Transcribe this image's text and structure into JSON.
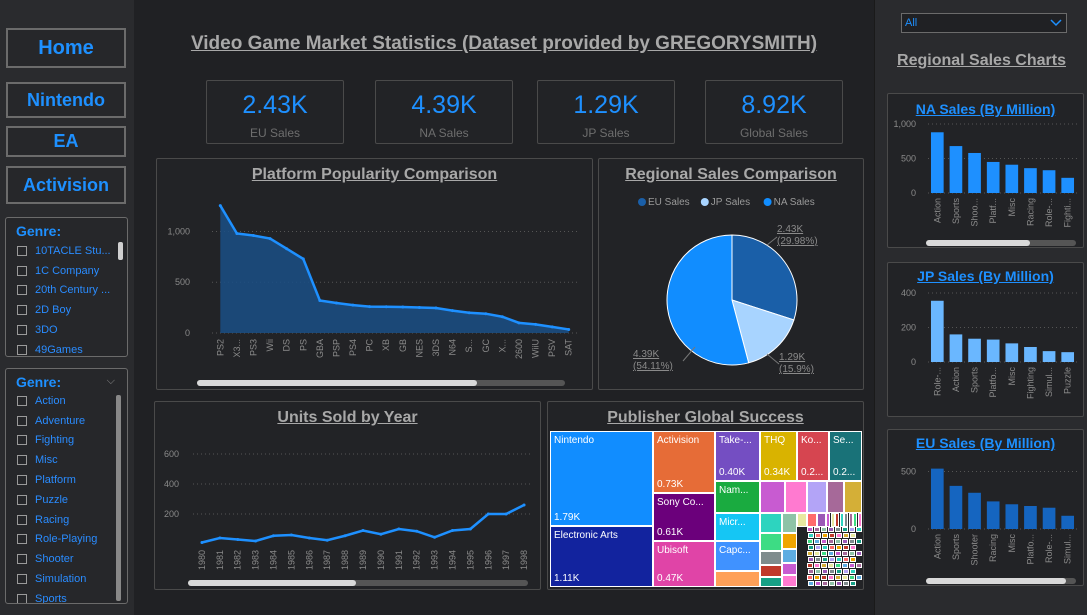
{
  "title": "Video Game Market Statistics (Dataset provided by GREGORYSMITH)",
  "nav": [
    "Home",
    "Nintendo",
    "EA",
    "Activision"
  ],
  "publisher_slicer": {
    "title": "Genre:",
    "items": [
      "10TACLE Stu...",
      "1C Company",
      "20th Century ...",
      "2D Boy",
      "3DO",
      "49Games"
    ]
  },
  "genre_slicer": {
    "title": "Genre:",
    "items": [
      "Action",
      "Adventure",
      "Fighting",
      "Misc",
      "Platform",
      "Puzzle",
      "Racing",
      "Role-Playing",
      "Shooter",
      "Simulation",
      "Sports"
    ]
  },
  "region_dropdown": {
    "value": "All"
  },
  "right_title": "Regional Sales Charts",
  "kpis": [
    {
      "value": "2.43K",
      "label": "EU Sales"
    },
    {
      "value": "4.39K",
      "label": "NA Sales"
    },
    {
      "value": "1.29K",
      "label": "JP Sales"
    },
    {
      "value": "8.92K",
      "label": "Global Sales"
    }
  ],
  "colors": {
    "accent": "#1e90ff",
    "eu": "#1a5fa8",
    "jp": "#a8d4ff",
    "na": "#118dff"
  },
  "chart_data": [
    {
      "type": "area",
      "title": "Platform Popularity Comparison",
      "categories": [
        "PS2",
        "X3...",
        "PS3",
        "Wii",
        "DS",
        "PS",
        "GBA",
        "PSP",
        "PS4",
        "PC",
        "XB",
        "GB",
        "NES",
        "3DS",
        "N64",
        "S...",
        "GC",
        "X...",
        "2600",
        "WiiU",
        "PSV",
        "SAT"
      ],
      "values": [
        1255,
        980,
        960,
        930,
        830,
        730,
        320,
        295,
        275,
        260,
        258,
        256,
        251,
        246,
        220,
        200,
        190,
        160,
        100,
        85,
        60,
        35
      ],
      "yticks": [
        "0",
        "500",
        "1,000"
      ],
      "ylim": [
        0,
        1300
      ]
    },
    {
      "type": "pie",
      "title": "Regional Sales Comparison",
      "legend": [
        "EU Sales",
        "JP Sales",
        "NA Sales"
      ],
      "values": [
        2.43,
        1.29,
        4.39
      ],
      "labels": [
        {
          "value": "2.43K",
          "pct": "(29.98%)"
        },
        {
          "value": "1.29K",
          "pct": "(15.9%)"
        },
        {
          "value": "4.39K",
          "pct": "(54.11%)"
        }
      ]
    },
    {
      "type": "line",
      "title": "Units Sold by Year",
      "categories": [
        "1980",
        "1981",
        "1982",
        "1983",
        "1984",
        "1985",
        "1986",
        "1987",
        "1988",
        "1989",
        "1990",
        "1991",
        "1992",
        "1993",
        "1994",
        "1995",
        "1996",
        "1997",
        "1998"
      ],
      "values": [
        10,
        40,
        30,
        20,
        55,
        60,
        40,
        25,
        55,
        90,
        65,
        100,
        85,
        45,
        90,
        100,
        200,
        200,
        260
      ],
      "yticks": [
        "200",
        "400",
        "600"
      ],
      "ylim": [
        0,
        680
      ]
    },
    {
      "type": "treemap",
      "title": "Publisher Global Success",
      "items": [
        {
          "name": "Nintendo",
          "value": "1.79K"
        },
        {
          "name": "Electronic Arts",
          "value": "1.11K"
        },
        {
          "name": "Activision",
          "value": "0.73K"
        },
        {
          "name": "Sony Co...",
          "value": "0.61K"
        },
        {
          "name": "Ubisoft",
          "value": "0.47K"
        },
        {
          "name": "Take-...",
          "value": "0.40K"
        },
        {
          "name": "THQ",
          "value": "0.34K"
        },
        {
          "name": "Ko...",
          "value": "0.2..."
        },
        {
          "name": "Se...",
          "value": "0.2..."
        },
        {
          "name": "Nam...",
          "value": ""
        },
        {
          "name": "Micr...",
          "value": ""
        },
        {
          "name": "Capc...",
          "value": ""
        }
      ]
    },
    {
      "type": "bar",
      "title": "NA Sales (By Million)",
      "categories": [
        "Action",
        "Sports",
        "Shoo...",
        "Platf...",
        "Misc",
        "Racing",
        "Role-...",
        "Fighti..."
      ],
      "values": [
        880,
        680,
        580,
        450,
        410,
        360,
        330,
        220
      ],
      "yticks": [
        "0",
        "500",
        "1,000"
      ],
      "ylim": [
        0,
        1000
      ]
    },
    {
      "type": "bar",
      "title": "JP Sales (By Million)",
      "categories": [
        "Role-...",
        "Action",
        "Sports",
        "Platfo...",
        "Misc",
        "Fighting",
        "Simul...",
        "Puzzle"
      ],
      "values": [
        355,
        160,
        135,
        130,
        108,
        87,
        63,
        57
      ],
      "yticks": [
        "0",
        "200",
        "400"
      ],
      "ylim": [
        0,
        400
      ]
    },
    {
      "type": "bar",
      "title": "EU Sales (By Million)",
      "categories": [
        "Action",
        "Sports",
        "Shooter",
        "Racing",
        "Misc",
        "Platfo...",
        "Role-...",
        "Simul..."
      ],
      "values": [
        525,
        375,
        315,
        240,
        215,
        200,
        185,
        115
      ],
      "yticks": [
        "0",
        "500"
      ],
      "ylim": [
        0,
        600
      ]
    }
  ]
}
